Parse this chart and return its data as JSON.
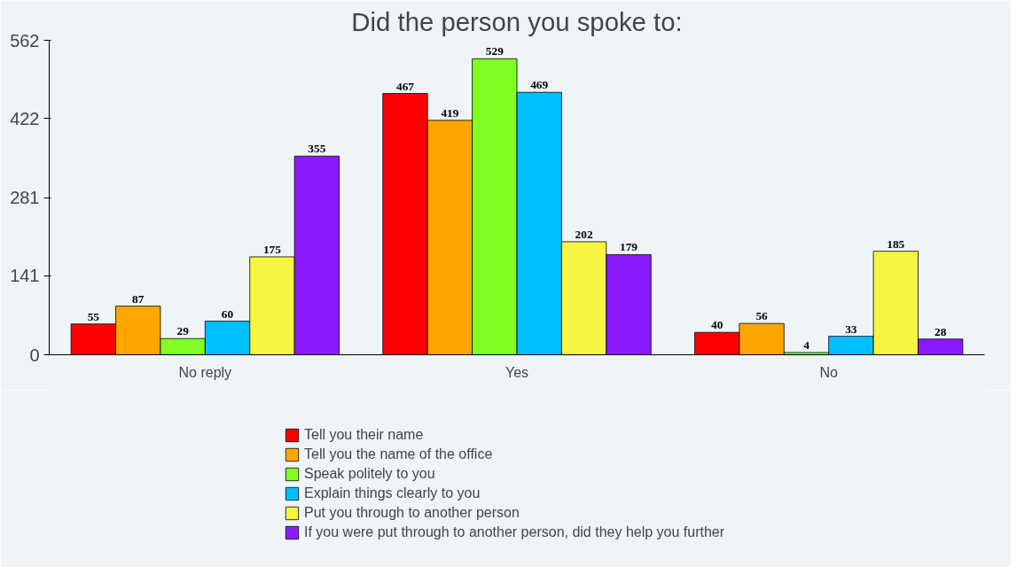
{
  "chart_data": {
    "type": "bar",
    "title": "Did the person you spoke to:",
    "categories": [
      "No reply",
      "Yes",
      "No"
    ],
    "series": [
      {
        "name": "Tell you their name",
        "color": "#ff0000",
        "values": [
          55,
          467,
          40
        ]
      },
      {
        "name": "Tell you the name of the office",
        "color": "#ffa500",
        "values": [
          87,
          419,
          56
        ]
      },
      {
        "name": "Speak politely to you",
        "color": "#80ff20",
        "values": [
          29,
          529,
          4
        ]
      },
      {
        "name": "Explain things clearly to you",
        "color": "#00bfff",
        "values": [
          60,
          469,
          33
        ]
      },
      {
        "name": "Put you through to another person",
        "color": "#f5f542",
        "values": [
          175,
          202,
          185
        ]
      },
      {
        "name": "If you were put through to another person, did they help you further",
        "color": "#8b1aff",
        "values": [
          355,
          179,
          28
        ]
      }
    ],
    "ylim": [
      0,
      562
    ],
    "yticks": [
      0,
      141,
      281,
      422,
      562
    ],
    "grid": false,
    "legend": "bottom",
    "data_labels": true
  }
}
